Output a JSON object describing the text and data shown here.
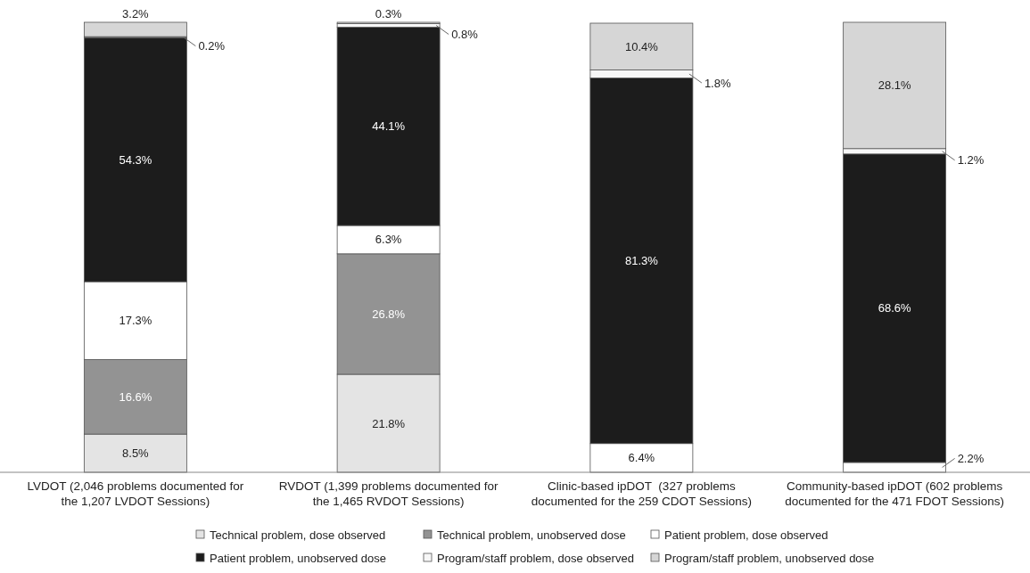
{
  "chart_data": {
    "type": "bar",
    "stacked": true,
    "tick_labels": "x",
    "legend": "bottom",
    "categories": [
      "LVDOT (2,046 problems documented for the 1,207 LVDOT Sessions)",
      "RVDOT (1,399 problems documented for the 1,465 RVDOT Sessions)",
      "Clinic-based ipDOT  (327 problems documented for the 259 CDOT Sessions)",
      "Community-based ipDOT (602 problems documented for the 471 FDOT Sessions)"
    ],
    "series": [
      {
        "name": "Technical problem, dose observed",
        "color": "#e4e4e4",
        "values": [
          8.5,
          21.8,
          null,
          null
        ],
        "value_labels": [
          "8.5%",
          "21.8%",
          null,
          null
        ]
      },
      {
        "name": "Technical problem, unobserved dose",
        "color": "#939393",
        "values": [
          16.6,
          26.8,
          null,
          null
        ],
        "value_labels": [
          "16.6%",
          "26.8%",
          null,
          null
        ]
      },
      {
        "name": "Patient problem, dose observed",
        "color": "#ffffff",
        "values": [
          17.3,
          6.3,
          6.4,
          2.2
        ],
        "value_labels": [
          "17.3%",
          "6.3%",
          "6.4%",
          "2.2%"
        ]
      },
      {
        "name": "Patient problem, unobserved dose",
        "color": "#1c1c1c",
        "values": [
          54.3,
          44.1,
          81.3,
          68.6
        ],
        "value_labels": [
          "54.3%",
          "44.1%",
          "81.3%",
          "68.6%"
        ]
      },
      {
        "name": "Program/staff problem, dose observed",
        "color": "#f7f7f7",
        "values": [
          0.2,
          0.8,
          1.8,
          1.2
        ],
        "value_labels": [
          "0.2%",
          "0.8%",
          "1.8%",
          "1.2%"
        ]
      },
      {
        "name": "Program/staff problem, unobserved dose",
        "color": "#d6d6d6",
        "values": [
          3.2,
          0.3,
          10.4,
          28.1
        ],
        "value_labels": [
          "3.2%",
          "0.3%",
          "10.4%",
          "28.1%"
        ]
      }
    ]
  }
}
